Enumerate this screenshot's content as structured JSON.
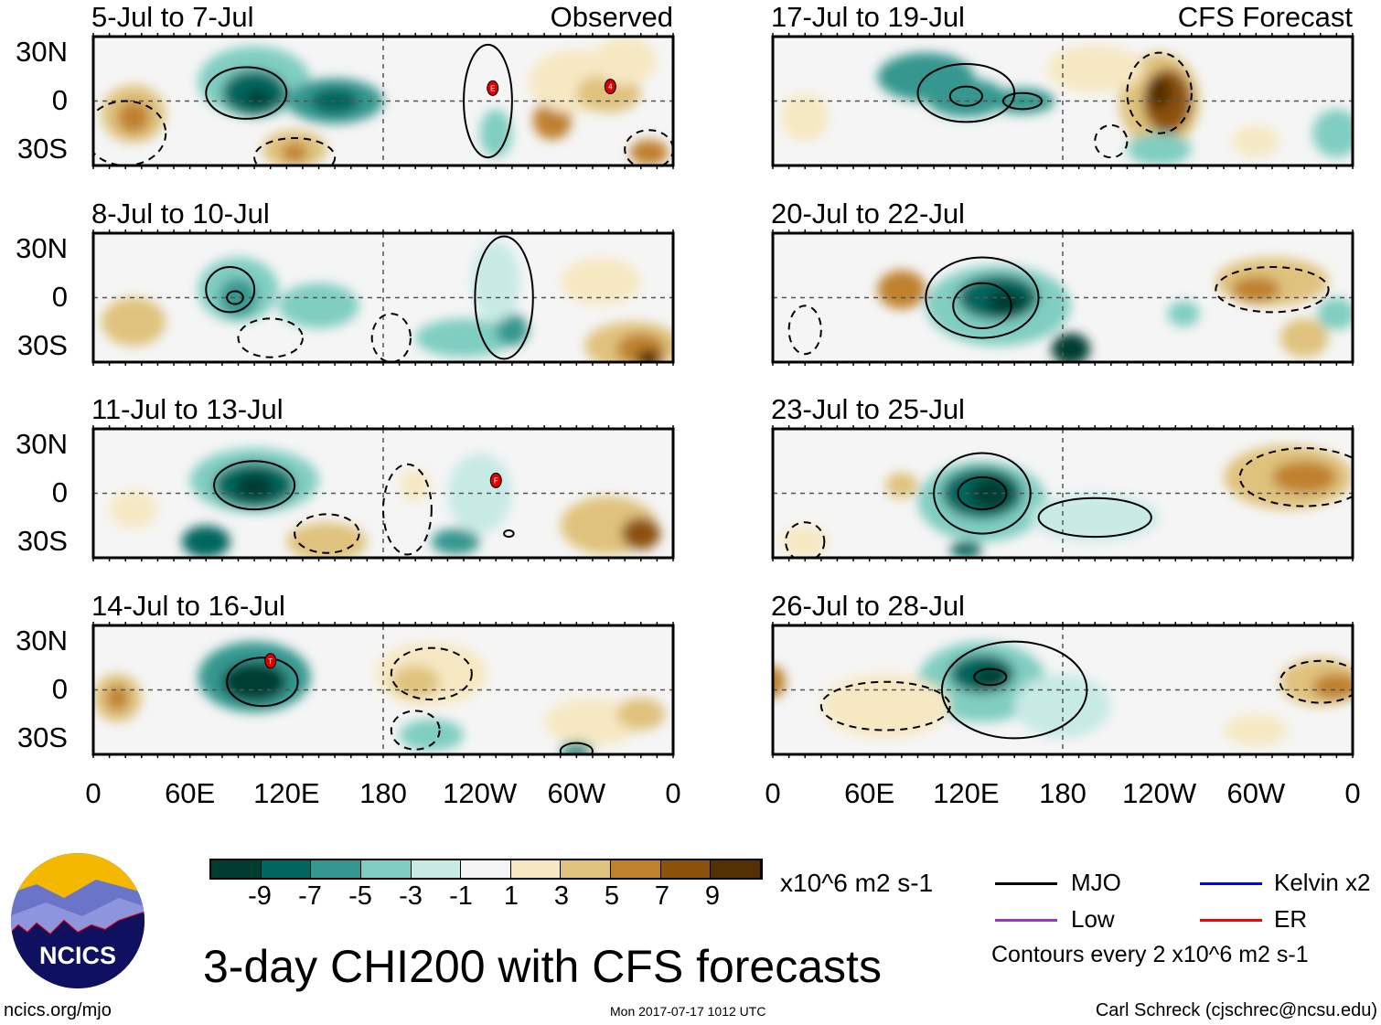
{
  "figure": {
    "title": "3-day CHI200 with CFS forecasts",
    "website": "ncics.org/mjo",
    "timestamp": "Mon 2017-07-17 1012 UTC",
    "author": "Carl Schreck (cjschrec@ncsu.edu)",
    "logo_text": "NCICS"
  },
  "column_labels": {
    "left": "Observed",
    "right": "CFS Forecast"
  },
  "y_ticks": [
    "30N",
    "0",
    "30S"
  ],
  "x_ticks": [
    "0",
    "60E",
    "120E",
    "180",
    "120W",
    "60W",
    "0"
  ],
  "colorbar": {
    "labels": [
      "-9",
      "-7",
      "-5",
      "-3",
      "-1",
      "1",
      "3",
      "5",
      "7",
      "9"
    ],
    "units": "x10^6 m2 s-1",
    "colors": [
      "#003c30",
      "#01665e",
      "#35978f",
      "#80cdc1",
      "#c7eae5",
      "#f5f5f5",
      "#f6e8c3",
      "#dfc27d",
      "#bf812d",
      "#8c510a",
      "#543005"
    ]
  },
  "legend": {
    "items": [
      {
        "label": "MJO",
        "color": "#000000"
      },
      {
        "label": "Kelvin x2",
        "color": "#0000ff"
      },
      {
        "label": "Low",
        "color": "#9933cc"
      },
      {
        "label": "ER",
        "color": "#ff0000"
      }
    ],
    "note": "Contours every 2 x10^6 m2 s-1"
  },
  "panels": [
    {
      "title": "5-Jul to 7-Jul",
      "col": 0,
      "row": 0,
      "storms": [
        {
          "lon": 248,
          "lat": 8,
          "label": "E"
        },
        {
          "lon": 321,
          "lat": 9,
          "label": "4"
        }
      ],
      "blobs": [
        [
          100,
          12,
          35,
          22,
          3
        ],
        [
          100,
          5,
          20,
          14,
          1
        ],
        [
          102,
          2,
          8,
          5,
          0
        ],
        [
          150,
          0,
          30,
          14,
          2
        ],
        [
          150,
          0,
          15,
          8,
          1
        ],
        [
          25,
          -8,
          20,
          18,
          7
        ],
        [
          25,
          -10,
          10,
          10,
          8
        ],
        [
          125,
          -30,
          20,
          12,
          7
        ],
        [
          125,
          -32,
          8,
          6,
          8
        ],
        [
          285,
          -12,
          12,
          12,
          8
        ],
        [
          300,
          12,
          30,
          20,
          6
        ],
        [
          320,
          5,
          20,
          12,
          7
        ],
        [
          345,
          -32,
          12,
          8,
          8
        ],
        [
          250,
          -20,
          10,
          15,
          3
        ],
        [
          330,
          25,
          20,
          15,
          6
        ]
      ],
      "contours": [
        [
          95,
          5,
          25,
          16,
          "s"
        ],
        [
          245,
          0,
          15,
          35,
          "s"
        ],
        [
          20,
          -20,
          25,
          20,
          "d"
        ],
        [
          125,
          -35,
          25,
          12,
          "d"
        ],
        [
          345,
          -30,
          15,
          12,
          "d"
        ]
      ]
    },
    {
      "title": "8-Jul to 10-Jul",
      "col": 0,
      "row": 1,
      "storms": [],
      "blobs": [
        [
          90,
          5,
          25,
          20,
          3
        ],
        [
          90,
          0,
          12,
          12,
          2
        ],
        [
          140,
          -5,
          25,
          14,
          3
        ],
        [
          230,
          -25,
          30,
          12,
          3
        ],
        [
          260,
          -20,
          10,
          10,
          2
        ],
        [
          25,
          -15,
          20,
          15,
          7
        ],
        [
          335,
          -30,
          30,
          15,
          7
        ],
        [
          340,
          -32,
          15,
          10,
          8
        ],
        [
          345,
          -38,
          8,
          6,
          10
        ],
        [
          315,
          10,
          25,
          15,
          6
        ],
        [
          250,
          10,
          15,
          25,
          4
        ]
      ],
      "contours": [
        [
          85,
          5,
          15,
          14,
          "s"
        ],
        [
          88,
          0,
          5,
          4,
          "s"
        ],
        [
          255,
          0,
          18,
          38,
          "s"
        ],
        [
          110,
          -25,
          20,
          12,
          "d"
        ],
        [
          185,
          -25,
          12,
          15,
          "d"
        ]
      ]
    },
    {
      "title": "11-Jul to 13-Jul",
      "col": 0,
      "row": 2,
      "storms": [
        {
          "lon": 250,
          "lat": 8,
          "label": "F"
        }
      ],
      "blobs": [
        [
          100,
          8,
          40,
          20,
          3
        ],
        [
          100,
          5,
          25,
          14,
          1
        ],
        [
          100,
          4,
          12,
          8,
          0
        ],
        [
          70,
          -30,
          15,
          10,
          1
        ],
        [
          225,
          -30,
          15,
          8,
          2
        ],
        [
          145,
          -30,
          25,
          12,
          7
        ],
        [
          320,
          -20,
          30,
          18,
          7
        ],
        [
          340,
          -25,
          12,
          10,
          9
        ],
        [
          25,
          -10,
          15,
          12,
          6
        ],
        [
          200,
          5,
          10,
          10,
          6
        ],
        [
          240,
          0,
          20,
          25,
          4
        ]
      ],
      "contours": [
        [
          100,
          5,
          25,
          15,
          "s"
        ],
        [
          145,
          -25,
          20,
          12,
          "d"
        ],
        [
          195,
          -10,
          15,
          28,
          "d"
        ],
        [
          258,
          -25,
          3,
          2,
          "s"
        ]
      ]
    },
    {
      "title": "14-Jul to 16-Jul",
      "col": 0,
      "row": 3,
      "storms": [
        {
          "lon": 110,
          "lat": 18,
          "label": "T"
        }
      ],
      "blobs": [
        [
          100,
          8,
          35,
          22,
          2
        ],
        [
          100,
          5,
          20,
          12,
          0
        ],
        [
          15,
          -5,
          15,
          15,
          7
        ],
        [
          15,
          -5,
          7,
          8,
          8
        ],
        [
          210,
          10,
          35,
          20,
          6
        ],
        [
          200,
          5,
          15,
          10,
          7
        ],
        [
          210,
          -28,
          20,
          10,
          3
        ],
        [
          310,
          -20,
          30,
          15,
          6
        ],
        [
          340,
          -15,
          15,
          10,
          7
        ],
        [
          300,
          -38,
          10,
          6,
          2
        ]
      ],
      "contours": [
        [
          105,
          5,
          22,
          15,
          "s"
        ],
        [
          210,
          10,
          25,
          16,
          "d"
        ],
        [
          200,
          -25,
          15,
          12,
          "d"
        ],
        [
          300,
          -38,
          10,
          5,
          "s"
        ]
      ]
    },
    {
      "title": "17-Jul to 19-Jul",
      "col": 1,
      "row": 0,
      "storms": [],
      "blobs": [
        [
          95,
          15,
          30,
          15,
          2
        ],
        [
          120,
          2,
          25,
          12,
          2
        ],
        [
          155,
          0,
          20,
          8,
          2
        ],
        [
          240,
          0,
          25,
          30,
          7
        ],
        [
          245,
          0,
          15,
          20,
          9
        ],
        [
          240,
          5,
          8,
          10,
          10
        ],
        [
          200,
          20,
          30,
          15,
          6
        ],
        [
          20,
          -10,
          15,
          15,
          6
        ],
        [
          240,
          -30,
          20,
          10,
          3
        ],
        [
          350,
          -20,
          15,
          15,
          3
        ],
        [
          300,
          -25,
          15,
          10,
          6
        ]
      ],
      "contours": [
        [
          120,
          5,
          30,
          18,
          "s"
        ],
        [
          120,
          3,
          10,
          6,
          "s"
        ],
        [
          155,
          0,
          12,
          5,
          "s"
        ],
        [
          240,
          5,
          20,
          25,
          "d"
        ],
        [
          210,
          -25,
          10,
          10,
          "d"
        ]
      ]
    },
    {
      "title": "20-Jul to 22-Jul",
      "col": 1,
      "row": 1,
      "storms": [],
      "blobs": [
        [
          140,
          -5,
          45,
          25,
          3
        ],
        [
          140,
          0,
          25,
          14,
          1
        ],
        [
          145,
          -3,
          12,
          8,
          0
        ],
        [
          185,
          -32,
          12,
          10,
          0
        ],
        [
          80,
          5,
          15,
          12,
          8
        ],
        [
          310,
          10,
          35,
          15,
          7
        ],
        [
          300,
          5,
          15,
          8,
          8
        ],
        [
          350,
          -10,
          12,
          10,
          3
        ],
        [
          330,
          -25,
          15,
          12,
          7
        ],
        [
          255,
          -10,
          10,
          8,
          3
        ]
      ],
      "contours": [
        [
          130,
          0,
          35,
          25,
          "s"
        ],
        [
          130,
          -5,
          18,
          14,
          "s"
        ],
        [
          310,
          5,
          35,
          14,
          "d"
        ],
        [
          20,
          -20,
          10,
          15,
          "d"
        ]
      ]
    },
    {
      "title": "23-Jul to 25-Jul",
      "col": 1,
      "row": 2,
      "storms": [],
      "blobs": [
        [
          130,
          -5,
          40,
          25,
          3
        ],
        [
          130,
          0,
          25,
          16,
          1
        ],
        [
          135,
          0,
          12,
          10,
          0
        ],
        [
          200,
          -15,
          40,
          15,
          4
        ],
        [
          320,
          10,
          40,
          20,
          7
        ],
        [
          330,
          10,
          20,
          10,
          8
        ],
        [
          80,
          5,
          10,
          8,
          7
        ],
        [
          20,
          -30,
          15,
          10,
          6
        ],
        [
          120,
          -35,
          10,
          5,
          1
        ]
      ],
      "contours": [
        [
          130,
          0,
          30,
          25,
          "s"
        ],
        [
          130,
          0,
          15,
          10,
          "s"
        ],
        [
          200,
          -15,
          35,
          12,
          "s"
        ],
        [
          330,
          10,
          40,
          18,
          "d"
        ],
        [
          20,
          -30,
          12,
          12,
          "d"
        ]
      ]
    },
    {
      "title": "26-Jul to 28-Jul",
      "col": 1,
      "row": 3,
      "storms": [],
      "blobs": [
        [
          130,
          5,
          40,
          25,
          3
        ],
        [
          130,
          10,
          20,
          12,
          1
        ],
        [
          135,
          8,
          10,
          6,
          0
        ],
        [
          180,
          -10,
          30,
          20,
          4
        ],
        [
          70,
          -10,
          40,
          20,
          6
        ],
        [
          340,
          5,
          25,
          15,
          7
        ],
        [
          350,
          2,
          15,
          8,
          8
        ],
        [
          0,
          5,
          8,
          10,
          8
        ],
        [
          300,
          -25,
          20,
          10,
          6
        ]
      ],
      "contours": [
        [
          150,
          0,
          45,
          30,
          "s"
        ],
        [
          135,
          8,
          10,
          5,
          "s"
        ],
        [
          340,
          5,
          25,
          13,
          "d"
        ],
        [
          70,
          -10,
          40,
          15,
          "d"
        ]
      ]
    }
  ]
}
